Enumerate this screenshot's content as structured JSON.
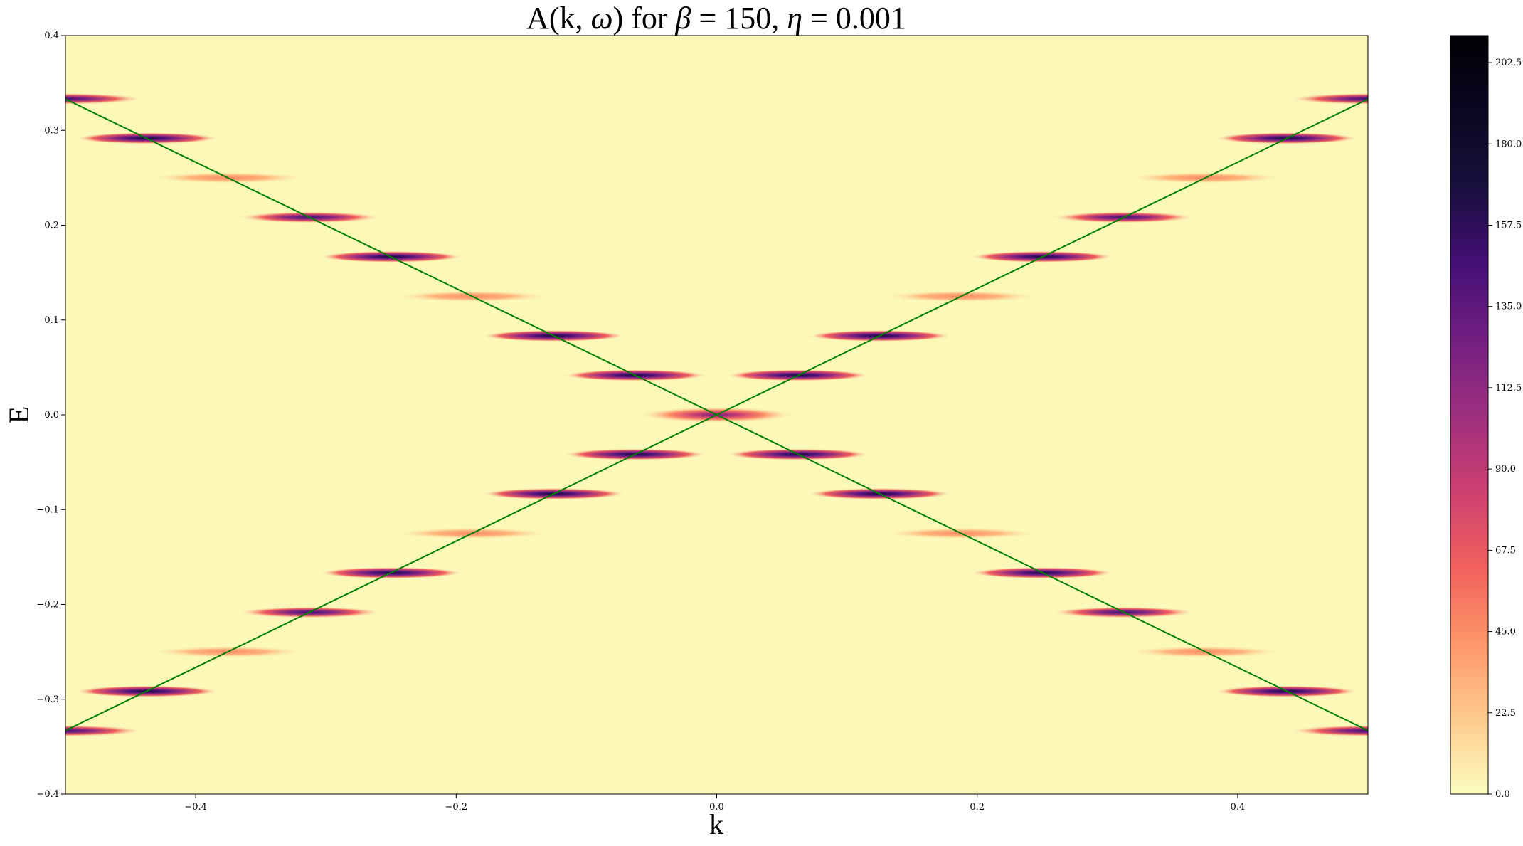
{
  "chart_data": {
    "type": "heatmap",
    "title": "A(k, ω) for β = 150, η = 0.001",
    "title_parts": {
      "prefix": "A(k, ",
      "omega": "ω",
      "mid": ") for ",
      "beta": "β",
      "beta_value": " = 150, ",
      "eta": "η",
      "eta_value": " = 0.001"
    },
    "xlabel": "k",
    "ylabel": "E",
    "xlim": [
      -0.5,
      0.5
    ],
    "ylim": [
      -0.4,
      0.4
    ],
    "x_ticks": [
      {
        "value": -0.4,
        "label": "−0.4"
      },
      {
        "value": -0.2,
        "label": "−0.2"
      },
      {
        "value": 0.0,
        "label": "0.0"
      },
      {
        "value": 0.2,
        "label": "0.2"
      },
      {
        "value": 0.4,
        "label": "0.4"
      }
    ],
    "y_ticks": [
      {
        "value": 0.4,
        "label": "0.4"
      },
      {
        "value": 0.3,
        "label": "0.3"
      },
      {
        "value": 0.2,
        "label": "0.2"
      },
      {
        "value": 0.1,
        "label": "0.1"
      },
      {
        "value": 0.0,
        "label": "0.0"
      },
      {
        "value": -0.1,
        "label": "−0.1"
      },
      {
        "value": -0.2,
        "label": "−0.2"
      },
      {
        "value": -0.3,
        "label": "−0.3"
      },
      {
        "value": -0.4,
        "label": "−0.4"
      }
    ],
    "colorbar": {
      "colormap": "magma_r",
      "range": [
        0.0,
        210.0
      ],
      "ticks": [
        {
          "value": 0.0,
          "label": "0.0"
        },
        {
          "value": 22.5,
          "label": "22.5"
        },
        {
          "value": 45.0,
          "label": "45.0"
        },
        {
          "value": 67.5,
          "label": "67.5"
        },
        {
          "value": 90.0,
          "label": "90.0"
        },
        {
          "value": 112.5,
          "label": "112.5"
        },
        {
          "value": 135.0,
          "label": "135.0"
        },
        {
          "value": 157.5,
          "label": "157.5"
        },
        {
          "value": 180.0,
          "label": "180.0"
        },
        {
          "value": 202.5,
          "label": "202.5"
        }
      ]
    },
    "dispersion_lines": [
      {
        "name": "E = 0.667 k",
        "color": "#008000",
        "points": [
          [
            -0.5,
            -0.333
          ],
          [
            0.5,
            0.333
          ]
        ]
      },
      {
        "name": "E = -0.667 k",
        "color": "#008000",
        "points": [
          [
            -0.5,
            0.333
          ],
          [
            0.5,
            -0.333
          ]
        ]
      }
    ],
    "peaks": [
      {
        "k": 0.0,
        "E": 0.0,
        "intensity": 150,
        "halfwidth_k": 0.06
      },
      {
        "k": -0.0625,
        "E": 0.0417,
        "intensity": 200,
        "halfwidth_k": 0.055
      },
      {
        "k": 0.0625,
        "E": 0.0417,
        "intensity": 200,
        "halfwidth_k": 0.055
      },
      {
        "k": -0.0625,
        "E": -0.0417,
        "intensity": 200,
        "halfwidth_k": 0.055
      },
      {
        "k": 0.0625,
        "E": -0.0417,
        "intensity": 200,
        "halfwidth_k": 0.055
      },
      {
        "k": -0.125,
        "E": 0.0833,
        "intensity": 200,
        "halfwidth_k": 0.055
      },
      {
        "k": 0.125,
        "E": 0.0833,
        "intensity": 200,
        "halfwidth_k": 0.055
      },
      {
        "k": -0.125,
        "E": -0.0833,
        "intensity": 200,
        "halfwidth_k": 0.055
      },
      {
        "k": 0.125,
        "E": -0.0833,
        "intensity": 200,
        "halfwidth_k": 0.055
      },
      {
        "k": -0.1875,
        "E": 0.125,
        "intensity": 50,
        "halfwidth_k": 0.06
      },
      {
        "k": 0.1875,
        "E": 0.125,
        "intensity": 50,
        "halfwidth_k": 0.06
      },
      {
        "k": -0.1875,
        "E": -0.125,
        "intensity": 50,
        "halfwidth_k": 0.06
      },
      {
        "k": 0.1875,
        "E": -0.125,
        "intensity": 50,
        "halfwidth_k": 0.06
      },
      {
        "k": -0.25,
        "E": 0.1667,
        "intensity": 200,
        "halfwidth_k": 0.055
      },
      {
        "k": 0.25,
        "E": 0.1667,
        "intensity": 200,
        "halfwidth_k": 0.055
      },
      {
        "k": -0.25,
        "E": -0.1667,
        "intensity": 200,
        "halfwidth_k": 0.055
      },
      {
        "k": 0.25,
        "E": -0.1667,
        "intensity": 200,
        "halfwidth_k": 0.055
      },
      {
        "k": -0.3125,
        "E": 0.2083,
        "intensity": 120,
        "halfwidth_k": 0.055
      },
      {
        "k": 0.3125,
        "E": 0.2083,
        "intensity": 120,
        "halfwidth_k": 0.055
      },
      {
        "k": -0.3125,
        "E": -0.2083,
        "intensity": 120,
        "halfwidth_k": 0.055
      },
      {
        "k": 0.3125,
        "E": -0.2083,
        "intensity": 120,
        "halfwidth_k": 0.055
      },
      {
        "k": -0.375,
        "E": 0.25,
        "intensity": 50,
        "halfwidth_k": 0.06
      },
      {
        "k": 0.375,
        "E": 0.25,
        "intensity": 50,
        "halfwidth_k": 0.06
      },
      {
        "k": -0.375,
        "E": -0.25,
        "intensity": 50,
        "halfwidth_k": 0.06
      },
      {
        "k": 0.375,
        "E": -0.25,
        "intensity": 50,
        "halfwidth_k": 0.06
      },
      {
        "k": -0.4375,
        "E": 0.2917,
        "intensity": 200,
        "halfwidth_k": 0.055
      },
      {
        "k": 0.4375,
        "E": 0.2917,
        "intensity": 200,
        "halfwidth_k": 0.055
      },
      {
        "k": -0.4375,
        "E": -0.2917,
        "intensity": 200,
        "halfwidth_k": 0.055
      },
      {
        "k": 0.4375,
        "E": -0.2917,
        "intensity": 200,
        "halfwidth_k": 0.055
      },
      {
        "k": -0.5,
        "E": 0.3333,
        "intensity": 120,
        "halfwidth_k": 0.06
      },
      {
        "k": 0.5,
        "E": 0.3333,
        "intensity": 120,
        "halfwidth_k": 0.06
      },
      {
        "k": -0.5,
        "E": -0.3333,
        "intensity": 120,
        "halfwidth_k": 0.06
      },
      {
        "k": 0.5,
        "E": -0.3333,
        "intensity": 120,
        "halfwidth_k": 0.06
      }
    ]
  }
}
